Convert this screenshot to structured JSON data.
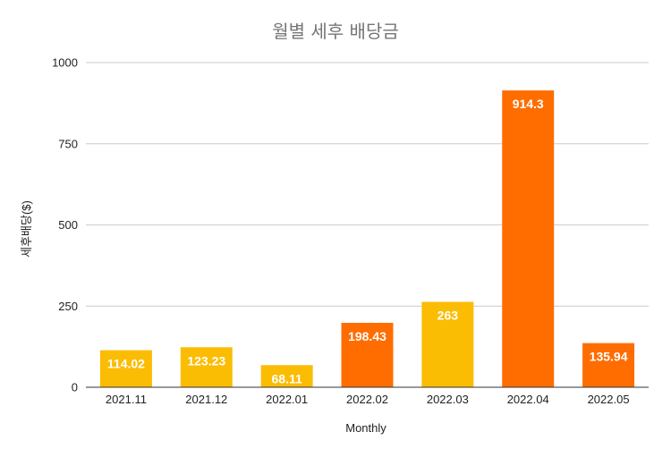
{
  "chart_data": {
    "type": "bar",
    "title": "월별 세후 배당금",
    "xlabel": "Monthly",
    "ylabel": "세후배당($)",
    "categories": [
      "2021.11",
      "2021.12",
      "2022.01",
      "2022.02",
      "2022.03",
      "2022.04",
      "2022.05"
    ],
    "values": [
      114.02,
      123.23,
      68.11,
      198.43,
      263,
      914.3,
      135.94
    ],
    "data_labels": [
      "114.02",
      "123.23",
      "68.11",
      "198.43",
      "263",
      "914.3",
      "135.94"
    ],
    "bar_colors": [
      "#fbbc04",
      "#fbbc04",
      "#fbbc04",
      "#ff6d01",
      "#fbbc04",
      "#ff6d01",
      "#ff6d01"
    ],
    "yticks": [
      0,
      250,
      500,
      750,
      1000
    ],
    "ylim": [
      0,
      1000
    ],
    "grid": true,
    "legend": "none"
  }
}
